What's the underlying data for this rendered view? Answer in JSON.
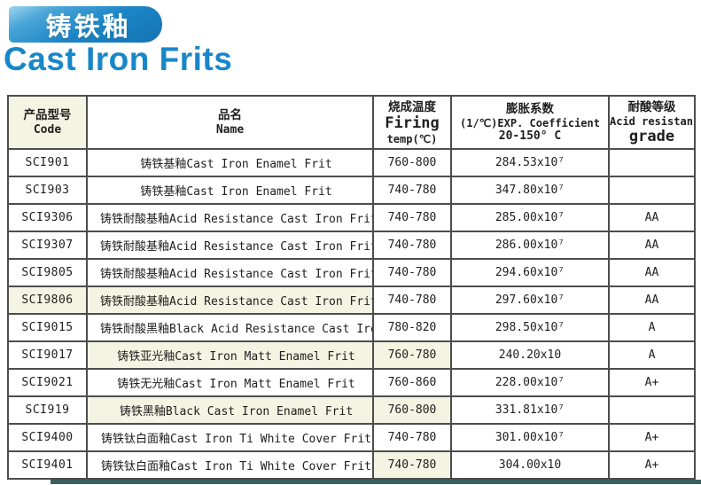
{
  "header": {
    "banner_title": "铸铁釉",
    "page_title": "Cast Iron Frits",
    "banner_color": "#1c85c6",
    "title_color": "#1787c9"
  },
  "colors": {
    "cell_tint": "#f4f4e3",
    "table_border": "#4d4d4d",
    "bottom_bar": "#3a6060"
  },
  "table": {
    "headers": {
      "code_zh": "产品型号",
      "code_en": "Code",
      "name_zh": "品名",
      "name_en": "Name",
      "firing_zh": "烧成温度",
      "firing_en": "Firing",
      "firing_unit": "temp(℃)",
      "coeff_zh": "膨胀系数",
      "coeff_en": "(1/℃)EXP. Coefficient",
      "coeff_range": "20-150° C",
      "grade_zh": "耐酸等级",
      "grade_en": "Acid resistance",
      "grade_en2": "grade"
    },
    "rows": [
      {
        "code": "SCI901",
        "name": "铸铁基釉Cast Iron Enamel Frit",
        "temp": "760-800",
        "coeff": "284.53x10⁷",
        "grade": ""
      },
      {
        "code": "SCI903",
        "name": "铸铁基釉Cast Iron Enamel Frit",
        "temp": "740-780",
        "coeff": "347.80x10⁷",
        "grade": ""
      },
      {
        "code": "SCI9306",
        "name": "铸铁耐酸基釉Acid Resistance Cast Iron Frit",
        "temp": "740-780",
        "coeff": "285.00x10⁷",
        "grade": "AA"
      },
      {
        "code": "SCI9307",
        "name": "铸铁耐酸基釉Acid Resistance Cast Iron Frit",
        "temp": "740-780",
        "coeff": "286.00x10⁷",
        "grade": "AA"
      },
      {
        "code": "SCI9805",
        "name": "铸铁耐酸基釉Acid Resistance Cast Iron Frit",
        "temp": "740-780",
        "coeff": "294.60x10⁷",
        "grade": "AA"
      },
      {
        "code": "SCI9806",
        "name": "铸铁耐酸基釉Acid Resistance Cast Iron Frit",
        "temp": "740-780",
        "coeff": "297.60x10⁷",
        "grade": "AA"
      },
      {
        "code": "SCI9015",
        "name": "铸铁耐酸黑釉Black Acid Resistance Cast Iron Frit",
        "temp": "780-820",
        "coeff": "298.50x10⁷",
        "grade": "A"
      },
      {
        "code": "SCI9017",
        "name": "铸铁亚光釉Cast Iron Matt Enamel Frit",
        "temp": "760-780",
        "coeff": "240.20x10",
        "grade": "A"
      },
      {
        "code": "SCI9021",
        "name": "铸铁无光釉Cast Iron Matt Enamel Frit",
        "temp": "760-860",
        "coeff": "228.00x10⁷",
        "grade": "A+"
      },
      {
        "code": "SCI919",
        "name": "铸铁黑釉Black Cast Iron Enamel Frit",
        "temp": "760-800",
        "coeff": "331.81x10⁷",
        "grade": ""
      },
      {
        "code": "SCI9400",
        "name": "铸铁钛白面釉Cast Iron Ti White Cover Frit",
        "temp": "740-780",
        "coeff": "301.00x10⁷",
        "grade": "A+"
      },
      {
        "code": "SCI9401",
        "name": "铸铁钛白面釉Cast Iron Ti White Cover Frit",
        "temp": "740-780",
        "coeff": "304.00x10",
        "grade": "A+"
      }
    ]
  }
}
